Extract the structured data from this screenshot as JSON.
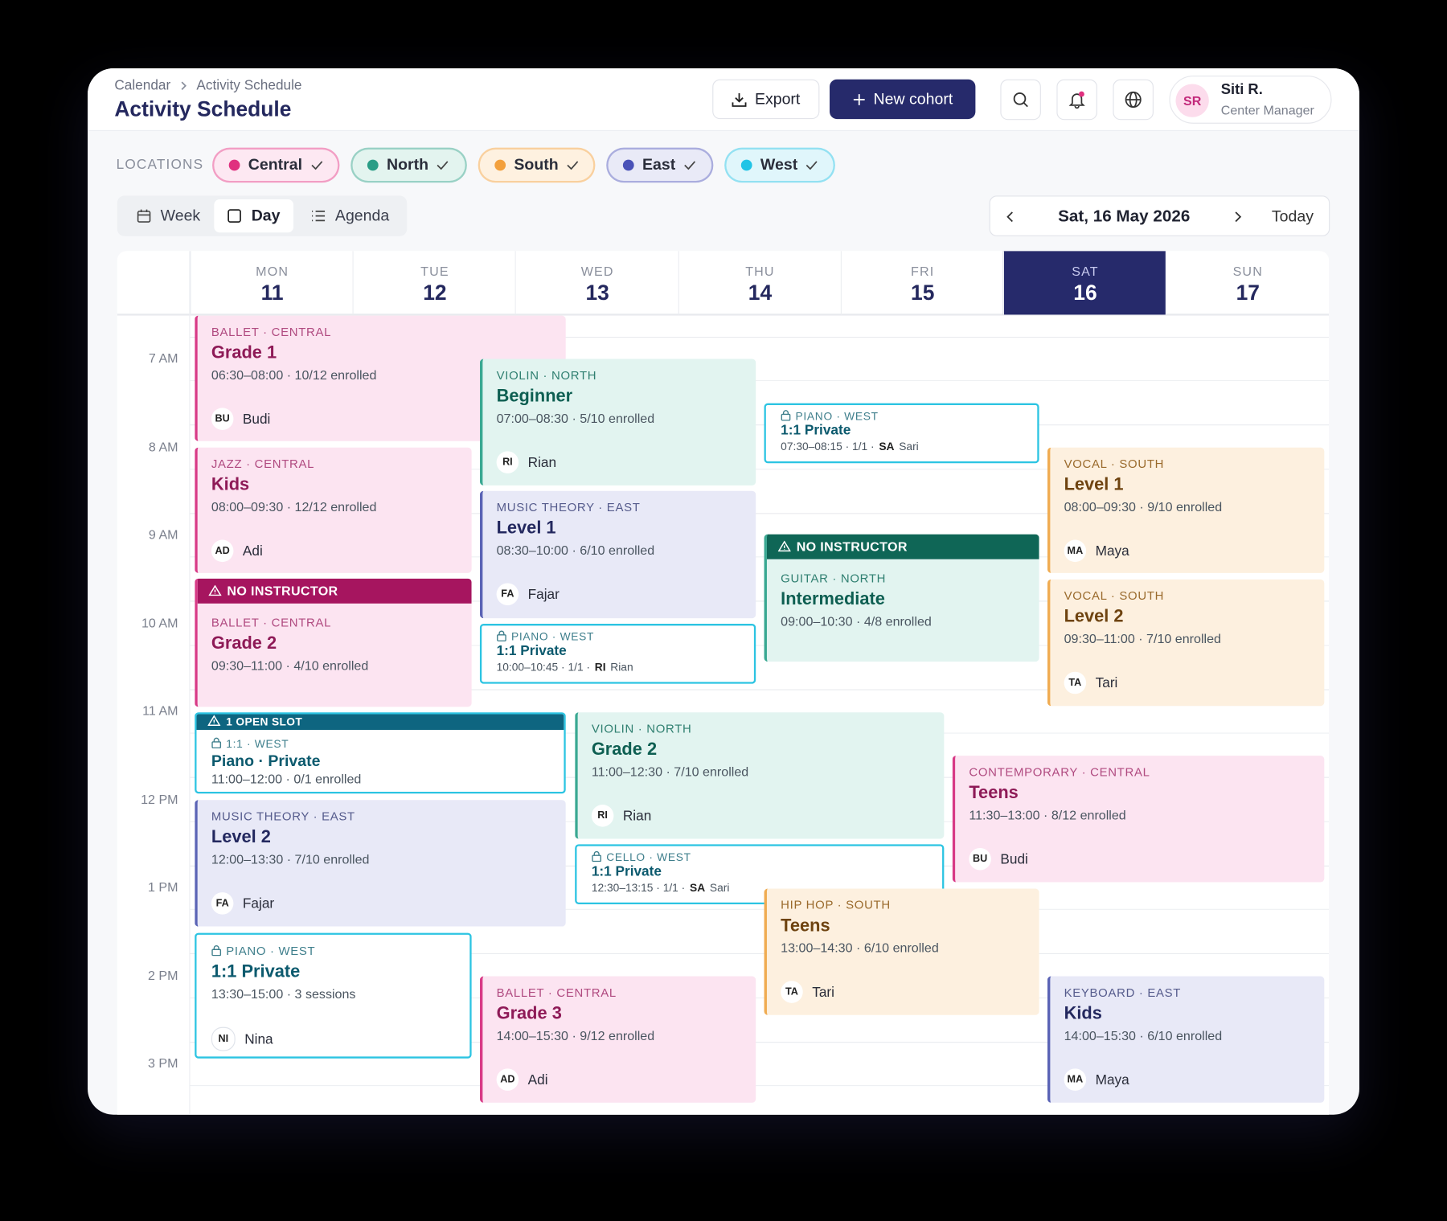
{
  "header": {
    "breadcrumb": [
      "Calendar",
      "Activity Schedule"
    ],
    "title": "Activity Schedule"
  },
  "actions": {
    "export": "Export",
    "new_cohort": "New cohort"
  },
  "user": {
    "initials": "SR",
    "name": "Siti R.",
    "role": "Center Manager"
  },
  "locations": {
    "label": "LOCATIONS",
    "items": [
      {
        "name": "Central",
        "color": "#e0307f"
      },
      {
        "name": "North",
        "color": "#2a9d86"
      },
      {
        "name": "South",
        "color": "#f3a03c"
      },
      {
        "name": "East",
        "color": "#4a52b8"
      },
      {
        "name": "West",
        "color": "#20c4e6"
      }
    ]
  },
  "views": [
    "Week",
    "Day",
    "Agenda"
  ],
  "date_nav": {
    "date": "Sat, 16 May 2026",
    "today": "Today"
  },
  "days": [
    {
      "dow": "MON",
      "num": "11"
    },
    {
      "dow": "TUE",
      "num": "12"
    },
    {
      "dow": "WED",
      "num": "13"
    },
    {
      "dow": "THU",
      "num": "14"
    },
    {
      "dow": "FRI",
      "num": "15"
    },
    {
      "dow": "SAT",
      "num": "16"
    },
    {
      "dow": "SUN",
      "num": "17"
    }
  ],
  "times": [
    "7 AM",
    "8 AM",
    "9 AM",
    "10 AM",
    "11 AM",
    "12 PM",
    "1 PM",
    "2 PM",
    "3 PM"
  ],
  "events": [
    {
      "tag": "BALLET · CENTRAL",
      "title": "Grade 1",
      "time": "06:30–08:00 · 10/12 enrolled",
      "initials": "BU",
      "instructor": "Budi"
    },
    {
      "tag": "VIOLIN · NORTH",
      "title": "Beginner",
      "time": "07:00–08:30 · 5/10 enrolled",
      "initials": "RI",
      "instructor": "Rian"
    },
    {
      "tag": "PIANO · WEST",
      "title": "1:1 Private",
      "time": "07:30–08:15 · 1/1 ·",
      "initials": "SA",
      "instructor": "Sari"
    },
    {
      "tag": "JAZZ · CENTRAL",
      "title": "Kids",
      "time": "08:00–09:30 · 12/12 enrolled",
      "initials": "AD",
      "instructor": "Adi"
    },
    {
      "tag": "VOCAL · SOUTH",
      "title": "Level 1",
      "time": "08:00–09:30 · 9/10 enrolled",
      "initials": "MA",
      "instructor": "Maya"
    },
    {
      "tag": "MUSIC THEORY · EAST",
      "title": "Level 1",
      "time": "08:30–10:00 · 6/10 enrolled",
      "initials": "FA",
      "instructor": "Fajar"
    },
    {
      "banner": "NO INSTRUCTOR",
      "tag": "GUITAR · NORTH",
      "title": "Intermediate",
      "time": "09:00–10:30 · 4/8 enrolled"
    },
    {
      "banner": "NO INSTRUCTOR",
      "tag": "BALLET · CENTRAL",
      "title": "Grade 2",
      "time": "09:30–11:00 · 4/10 enrolled"
    },
    {
      "tag": "VOCAL · SOUTH",
      "title": "Level 2",
      "time": "09:30–11:00 · 7/10 enrolled",
      "initials": "TA",
      "instructor": "Tari"
    },
    {
      "tag": "PIANO · WEST",
      "title": "1:1 Private",
      "time": "10:00–10:45 · 1/1 ·",
      "initials": "RI",
      "instructor": "Rian"
    },
    {
      "banner": "1 OPEN SLOT",
      "tag": "1:1 · WEST",
      "title": "Piano · Private",
      "time": "11:00–12:00 · 0/1 enrolled"
    },
    {
      "tag": "VIOLIN · NORTH",
      "title": "Grade 2",
      "time": "11:00–12:30 · 7/10 enrolled",
      "initials": "RI",
      "instructor": "Rian"
    },
    {
      "tag": "CONTEMPORARY · CENTRAL",
      "title": "Teens",
      "time": "11:30–13:00 · 8/12 enrolled",
      "initials": "BU",
      "instructor": "Budi"
    },
    {
      "tag": "MUSIC THEORY · EAST",
      "title": "Level 2",
      "time": "12:00–13:30 · 7/10 enrolled",
      "initials": "FA",
      "instructor": "Fajar"
    },
    {
      "tag": "CELLO · WEST",
      "title": "1:1 Private",
      "time": "12:30–13:15 · 1/1 ·",
      "initials": "SA",
      "instructor": "Sari"
    },
    {
      "tag": "HIP HOP · SOUTH",
      "title": "Teens",
      "time": "13:00–14:30 · 6/10 enrolled",
      "initials": "TA",
      "instructor": "Tari"
    },
    {
      "tag": "PIANO · WEST",
      "title": "1:1 Private",
      "time": "13:30–15:00 · 3 sessions",
      "initials": "NI",
      "instructor": "Nina"
    },
    {
      "tag": "BALLET · CENTRAL",
      "title": "Grade 3",
      "time": "14:00–15:30 · 9/12 enrolled",
      "initials": "AD",
      "instructor": "Adi"
    },
    {
      "tag": "KEYBOARD · EAST",
      "title": "Kids",
      "time": "14:00–15:30 · 6/10 enrolled",
      "initials": "MA",
      "instructor": "Maya"
    }
  ]
}
